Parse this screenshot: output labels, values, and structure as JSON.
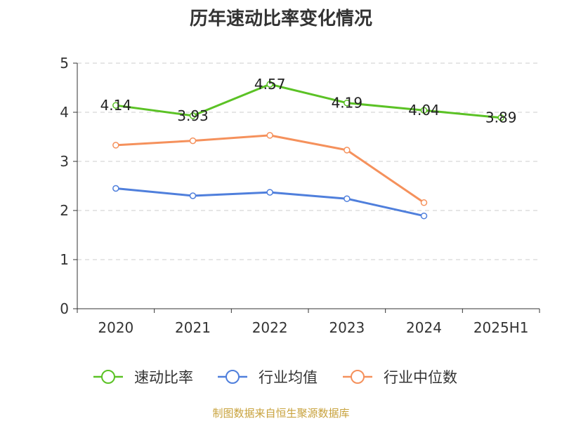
{
  "chart_data": {
    "type": "line",
    "title": "历年速动比率变化情况",
    "categories": [
      "2020",
      "2021",
      "2022",
      "2023",
      "2024",
      "2025H1"
    ],
    "ylim": [
      0,
      5
    ],
    "yticks": [
      0,
      1,
      2,
      3,
      4,
      5
    ],
    "grid": true,
    "legend_position": "bottom",
    "series": [
      {
        "name": "速动比率",
        "color": "#5bc225",
        "values": [
          4.14,
          3.93,
          4.57,
          4.19,
          4.04,
          3.89
        ],
        "labels": [
          "4.14",
          "3.93",
          "4.57",
          "4.19",
          "4.04",
          "3.89"
        ],
        "show_labels": true
      },
      {
        "name": "行业均值",
        "color": "#4f7fdc",
        "values": [
          2.45,
          2.3,
          2.37,
          2.24,
          1.89,
          null
        ],
        "show_labels": false
      },
      {
        "name": "行业中位数",
        "color": "#f5915c",
        "values": [
          3.33,
          3.42,
          3.53,
          3.23,
          2.16,
          null
        ],
        "show_labels": false
      }
    ]
  },
  "source_note": "制图数据来自恒生聚源数据库"
}
